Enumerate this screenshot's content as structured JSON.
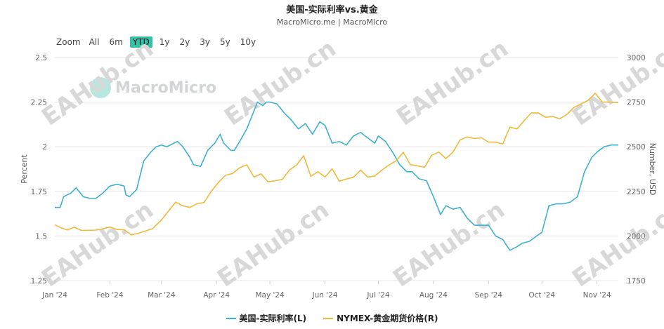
{
  "title": "美国-实际利率vs.黄金",
  "subtitle": "MacroMicro.me | MacroMicro",
  "range_selector": {
    "zoom_label": "Zoom",
    "buttons": [
      "All",
      "6m",
      "YTD",
      "1y",
      "2y",
      "3y",
      "5y",
      "10y"
    ],
    "active": "YTD"
  },
  "watermark": {
    "logo_text": "MacroMicro",
    "text": "EAHub.cn"
  },
  "colors": {
    "real_rate": "#3fb1ce",
    "gold": "#f0b93a",
    "grid": "#e6e6e6",
    "range_active": "#35c0a8"
  },
  "chart_data": {
    "type": "line",
    "x_type": "date",
    "xlim": [
      "2024-01-01",
      "2024-11-13"
    ],
    "x_ticks": [
      {
        "date": "2024-01-01",
        "label": "Jan '24"
      },
      {
        "date": "2024-02-01",
        "label": "Feb '24"
      },
      {
        "date": "2024-03-01",
        "label": "Mar '24"
      },
      {
        "date": "2024-04-01",
        "label": "Apr '24"
      },
      {
        "date": "2024-05-01",
        "label": "May '24"
      },
      {
        "date": "2024-06-01",
        "label": "Jun '24"
      },
      {
        "date": "2024-07-01",
        "label": "Jul '24"
      },
      {
        "date": "2024-08-01",
        "label": "Aug '24"
      },
      {
        "date": "2024-09-01",
        "label": "Sep '24"
      },
      {
        "date": "2024-10-01",
        "label": "Oct '24"
      },
      {
        "date": "2024-11-01",
        "label": "Nov '24"
      }
    ],
    "y_left": {
      "label": "Percent",
      "min": 1.25,
      "max": 2.5,
      "ticks": [
        1.25,
        1.5,
        1.75,
        2,
        2.25,
        2.5
      ],
      "tick_labels": [
        "1.25",
        "1.5",
        "1.75",
        "2",
        "2.25",
        "2.5"
      ]
    },
    "y_right": {
      "label": "Number, USD",
      "min": 1750,
      "max": 3000,
      "ticks": [
        1750,
        2000,
        2250,
        2500,
        2750,
        3000
      ],
      "tick_labels": [
        "1750",
        "2000",
        "2250",
        "2500",
        "2750",
        "3000"
      ]
    },
    "grid": true,
    "legend_position": "bottom-center",
    "series": [
      {
        "name": "美国-实际利率(L)",
        "axis": "left",
        "points": [
          [
            "2024-01-01",
            1.66
          ],
          [
            "2024-01-04",
            1.66
          ],
          [
            "2024-01-06",
            1.72
          ],
          [
            "2024-01-10",
            1.74
          ],
          [
            "2024-01-13",
            1.77
          ],
          [
            "2024-01-17",
            1.72
          ],
          [
            "2024-01-21",
            1.71
          ],
          [
            "2024-01-24",
            1.71
          ],
          [
            "2024-01-28",
            1.74
          ],
          [
            "2024-02-01",
            1.78
          ],
          [
            "2024-02-05",
            1.79
          ],
          [
            "2024-02-09",
            1.78
          ],
          [
            "2024-02-10",
            1.73
          ],
          [
            "2024-02-12",
            1.72
          ],
          [
            "2024-02-16",
            1.76
          ],
          [
            "2024-02-20",
            1.92
          ],
          [
            "2024-02-24",
            1.97
          ],
          [
            "2024-02-27",
            2.0
          ],
          [
            "2024-03-01",
            2.01
          ],
          [
            "2024-03-04",
            2.0
          ],
          [
            "2024-03-08",
            2.02
          ],
          [
            "2024-03-10",
            2.03
          ],
          [
            "2024-03-13",
            2.0
          ],
          [
            "2024-03-17",
            1.94
          ],
          [
            "2024-03-19",
            1.9
          ],
          [
            "2024-03-23",
            1.89
          ],
          [
            "2024-03-27",
            1.98
          ],
          [
            "2024-03-31",
            2.02
          ],
          [
            "2024-04-03",
            2.07
          ],
          [
            "2024-04-05",
            2.02
          ],
          [
            "2024-04-09",
            1.98
          ],
          [
            "2024-04-11",
            1.98
          ],
          [
            "2024-04-14",
            2.03
          ],
          [
            "2024-04-18",
            2.1
          ],
          [
            "2024-04-22",
            2.2
          ],
          [
            "2024-04-24",
            2.25
          ],
          [
            "2024-04-27",
            2.23
          ],
          [
            "2024-04-29",
            2.25
          ],
          [
            "2024-05-01",
            2.25
          ],
          [
            "2024-05-05",
            2.24
          ],
          [
            "2024-05-09",
            2.19
          ],
          [
            "2024-05-13",
            2.15
          ],
          [
            "2024-05-17",
            2.1
          ],
          [
            "2024-05-21",
            2.13
          ],
          [
            "2024-05-25",
            2.07
          ],
          [
            "2024-05-29",
            2.14
          ],
          [
            "2024-06-01",
            2.12
          ],
          [
            "2024-06-05",
            2.02
          ],
          [
            "2024-06-09",
            2.03
          ],
          [
            "2024-06-13",
            2.01
          ],
          [
            "2024-06-17",
            2.06
          ],
          [
            "2024-06-21",
            2.08
          ],
          [
            "2024-06-25",
            2.05
          ],
          [
            "2024-06-29",
            2.02
          ],
          [
            "2024-07-01",
            2.06
          ],
          [
            "2024-07-05",
            2.03
          ],
          [
            "2024-07-09",
            1.97
          ],
          [
            "2024-07-13",
            1.9
          ],
          [
            "2024-07-17",
            1.86
          ],
          [
            "2024-07-20",
            1.86
          ],
          [
            "2024-07-24",
            1.82
          ],
          [
            "2024-07-28",
            1.81
          ],
          [
            "2024-08-01",
            1.72
          ],
          [
            "2024-08-05",
            1.62
          ],
          [
            "2024-08-08",
            1.67
          ],
          [
            "2024-08-12",
            1.65
          ],
          [
            "2024-08-16",
            1.66
          ],
          [
            "2024-08-20",
            1.6
          ],
          [
            "2024-08-24",
            1.56
          ],
          [
            "2024-08-28",
            1.56
          ],
          [
            "2024-09-01",
            1.56
          ],
          [
            "2024-09-05",
            1.5
          ],
          [
            "2024-09-09",
            1.48
          ],
          [
            "2024-09-13",
            1.42
          ],
          [
            "2024-09-17",
            1.44
          ],
          [
            "2024-09-20",
            1.46
          ],
          [
            "2024-09-24",
            1.47
          ],
          [
            "2024-09-28",
            1.5
          ],
          [
            "2024-10-01",
            1.52
          ],
          [
            "2024-10-05",
            1.67
          ],
          [
            "2024-10-09",
            1.68
          ],
          [
            "2024-10-13",
            1.68
          ],
          [
            "2024-10-17",
            1.69
          ],
          [
            "2024-10-21",
            1.72
          ],
          [
            "2024-10-25",
            1.86
          ],
          [
            "2024-10-29",
            1.94
          ],
          [
            "2024-11-01",
            1.97
          ],
          [
            "2024-11-05",
            2.0
          ],
          [
            "2024-11-09",
            2.01
          ],
          [
            "2024-11-13",
            2.01
          ]
        ]
      },
      {
        "name": "NYMEX-黄金期货价格(R)",
        "axis": "right",
        "points": [
          [
            "2024-01-01",
            2063
          ],
          [
            "2024-01-04",
            2048
          ],
          [
            "2024-01-08",
            2034
          ],
          [
            "2024-01-12",
            2049
          ],
          [
            "2024-01-16",
            2031
          ],
          [
            "2024-01-20",
            2032
          ],
          [
            "2024-01-24",
            2033
          ],
          [
            "2024-01-28",
            2040
          ],
          [
            "2024-02-01",
            2050
          ],
          [
            "2024-02-05",
            2036
          ],
          [
            "2024-02-09",
            2035
          ],
          [
            "2024-02-13",
            2006
          ],
          [
            "2024-02-17",
            2015
          ],
          [
            "2024-02-21",
            2028
          ],
          [
            "2024-02-25",
            2041
          ],
          [
            "2024-03-01",
            2090
          ],
          [
            "2024-03-05",
            2140
          ],
          [
            "2024-03-09",
            2190
          ],
          [
            "2024-03-13",
            2169
          ],
          [
            "2024-03-17",
            2160
          ],
          [
            "2024-03-21",
            2180
          ],
          [
            "2024-03-25",
            2188
          ],
          [
            "2024-03-29",
            2250
          ],
          [
            "2024-04-02",
            2300
          ],
          [
            "2024-04-06",
            2340
          ],
          [
            "2024-04-10",
            2350
          ],
          [
            "2024-04-14",
            2383
          ],
          [
            "2024-04-18",
            2399
          ],
          [
            "2024-04-22",
            2330
          ],
          [
            "2024-04-26",
            2348
          ],
          [
            "2024-04-30",
            2303
          ],
          [
            "2024-05-04",
            2310
          ],
          [
            "2024-05-08",
            2317
          ],
          [
            "2024-05-12",
            2370
          ],
          [
            "2024-05-16",
            2397
          ],
          [
            "2024-05-20",
            2450
          ],
          [
            "2024-05-24",
            2334
          ],
          [
            "2024-05-28",
            2360
          ],
          [
            "2024-06-01",
            2330
          ],
          [
            "2024-06-05",
            2376
          ],
          [
            "2024-06-09",
            2307
          ],
          [
            "2024-06-13",
            2319
          ],
          [
            "2024-06-17",
            2329
          ],
          [
            "2024-06-21",
            2369
          ],
          [
            "2024-06-25",
            2330
          ],
          [
            "2024-06-29",
            2336
          ],
          [
            "2024-07-03",
            2369
          ],
          [
            "2024-07-07",
            2398
          ],
          [
            "2024-07-11",
            2421
          ],
          [
            "2024-07-15",
            2469
          ],
          [
            "2024-07-19",
            2400
          ],
          [
            "2024-07-23",
            2393
          ],
          [
            "2024-07-27",
            2385
          ],
          [
            "2024-07-31",
            2453
          ],
          [
            "2024-08-04",
            2470
          ],
          [
            "2024-08-08",
            2434
          ],
          [
            "2024-08-12",
            2470
          ],
          [
            "2024-08-16",
            2538
          ],
          [
            "2024-08-20",
            2555
          ],
          [
            "2024-08-24",
            2546
          ],
          [
            "2024-08-28",
            2550
          ],
          [
            "2024-09-01",
            2526
          ],
          [
            "2024-09-05",
            2526
          ],
          [
            "2024-09-09",
            2516
          ],
          [
            "2024-09-13",
            2610
          ],
          [
            "2024-09-17",
            2600
          ],
          [
            "2024-09-21",
            2646
          ],
          [
            "2024-09-25",
            2690
          ],
          [
            "2024-09-29",
            2690
          ],
          [
            "2024-10-03",
            2665
          ],
          [
            "2024-10-07",
            2670
          ],
          [
            "2024-10-11",
            2657
          ],
          [
            "2024-10-15",
            2680
          ],
          [
            "2024-10-19",
            2720
          ],
          [
            "2024-10-23",
            2740
          ],
          [
            "2024-10-27",
            2760
          ],
          [
            "2024-10-31",
            2800
          ],
          [
            "2024-11-04",
            2750
          ],
          [
            "2024-11-08",
            2750
          ],
          [
            "2024-11-13",
            2747
          ]
        ]
      }
    ]
  }
}
